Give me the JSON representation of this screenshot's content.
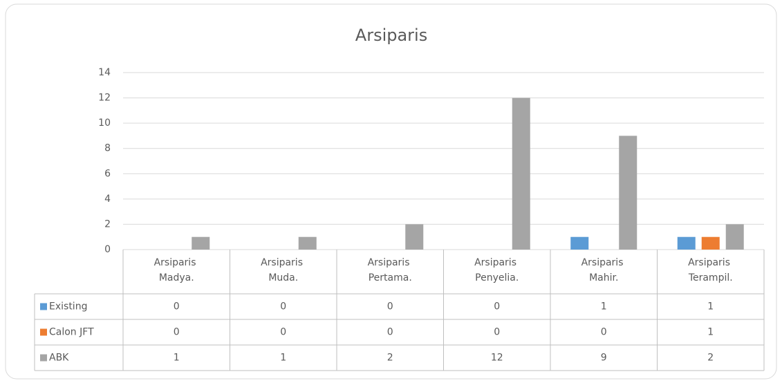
{
  "chart_data": {
    "type": "bar",
    "title": "Arsiparis",
    "categories": [
      "Arsiparis Madya.",
      "Arsiparis Muda.",
      "Arsiparis Pertama.",
      "Arsiparis Penyelia.",
      "Arsiparis Mahir.",
      "Arsiparis Terampil."
    ],
    "series": [
      {
        "name": "Existing",
        "color": "#5b9bd5",
        "values": [
          0,
          0,
          0,
          0,
          1,
          1
        ]
      },
      {
        "name": "Calon JFT",
        "color": "#ed7d31",
        "values": [
          0,
          0,
          0,
          0,
          0,
          1
        ]
      },
      {
        "name": "ABK",
        "color": "#a5a5a5",
        "values": [
          1,
          1,
          2,
          12,
          9,
          2
        ]
      }
    ],
    "ylim": [
      0,
      14
    ],
    "yticks": [
      0,
      2,
      4,
      6,
      8,
      10,
      12,
      14
    ],
    "grid": true,
    "data_table": true
  }
}
